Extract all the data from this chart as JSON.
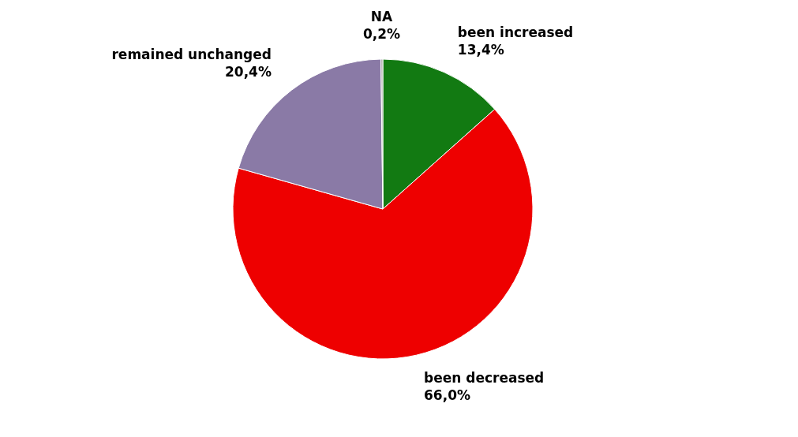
{
  "chart_data": {
    "type": "pie",
    "categories": [
      "been increased",
      "been decreased",
      "remained unchanged",
      "NA"
    ],
    "values": [
      13.4,
      66.0,
      20.4,
      0.2
    ],
    "colors": [
      "#127a12",
      "#ee0000",
      "#8a7aa6",
      "#a8a8a8"
    ],
    "value_labels": [
      "13,4%",
      "66,0%",
      "20,4%",
      "0,2%"
    ],
    "legend": false
  }
}
